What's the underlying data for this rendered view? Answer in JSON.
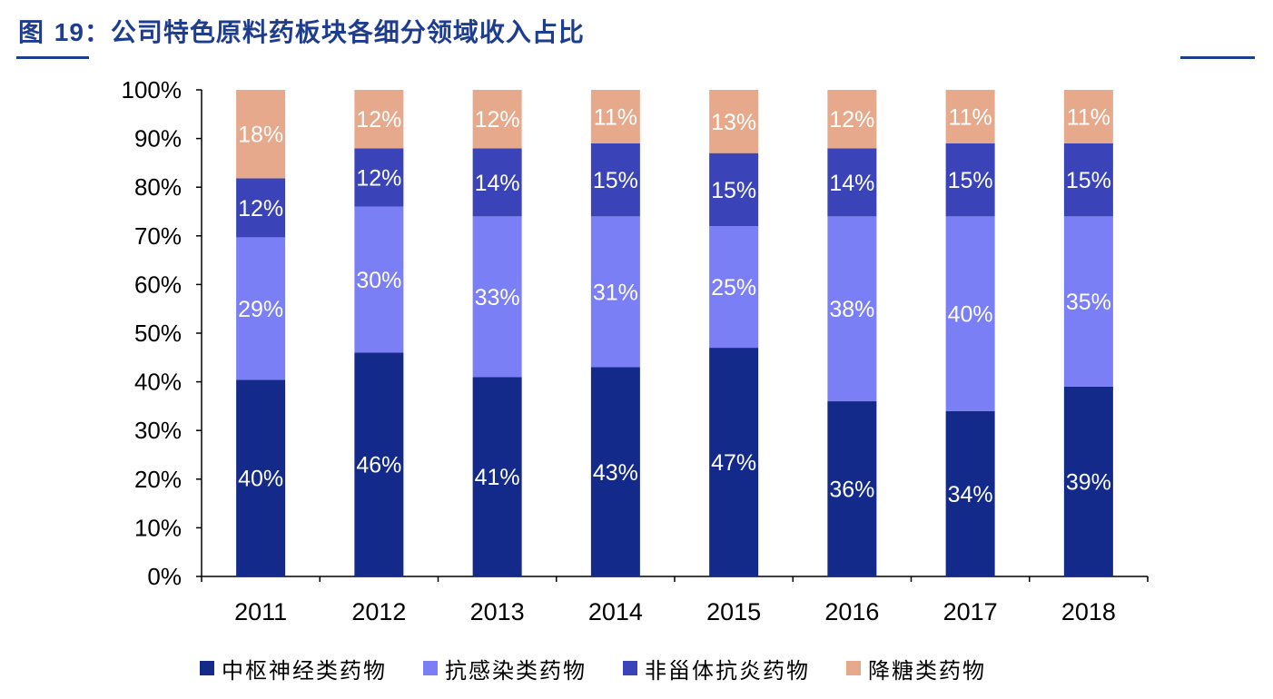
{
  "header": {
    "fig_label": "图",
    "fig_number": "19",
    "title": "：公司特色原料药板块各细分领域收入占比"
  },
  "colors": {
    "title": "#1f3d8f",
    "series": [
      "#132a8a",
      "#7b7ff5",
      "#3a44b8",
      "#e6a98c"
    ]
  },
  "chart_data": {
    "type": "bar",
    "stacked": true,
    "categories": [
      "2011",
      "2012",
      "2013",
      "2014",
      "2015",
      "2016",
      "2017",
      "2018"
    ],
    "series": [
      {
        "name": "中枢神经类药物",
        "values": [
          40,
          46,
          41,
          43,
          47,
          36,
          34,
          39
        ]
      },
      {
        "name": "抗感染类药物",
        "values": [
          29,
          30,
          33,
          31,
          25,
          38,
          40,
          35
        ]
      },
      {
        "name": "非甾体抗炎药物",
        "values": [
          12,
          12,
          14,
          15,
          15,
          14,
          15,
          15
        ]
      },
      {
        "name": "降糖类药物",
        "values": [
          18,
          12,
          12,
          11,
          13,
          12,
          11,
          11
        ]
      }
    ],
    "ylim": [
      0,
      100
    ],
    "yticks": [
      "0%",
      "10%",
      "20%",
      "30%",
      "40%",
      "50%",
      "60%",
      "70%",
      "80%",
      "90%",
      "100%"
    ],
    "grid": false,
    "legend": "bottom"
  }
}
